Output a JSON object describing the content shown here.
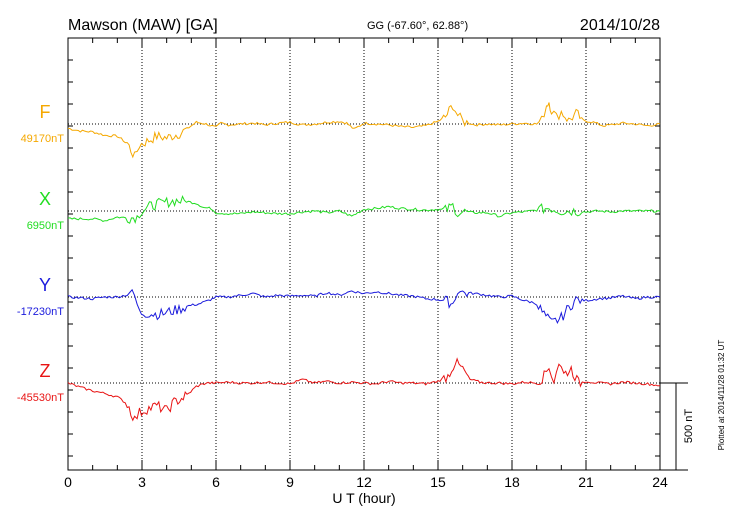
{
  "header": {
    "station": "Mawson (MAW)  [GA]",
    "coords": "GG (-67.60°,  62.88°)",
    "date": "2014/10/28"
  },
  "footnote": "Plotted at 2014/11/28 01:32 UT",
  "scale_label": "500 nT",
  "chart_data": {
    "type": "line",
    "title": "Mawson (MAW)  [GA]",
    "xlabel": "U T (hour)",
    "ylabel": "",
    "xlim": [
      0,
      24
    ],
    "x_ticks": [
      0,
      3,
      6,
      9,
      12,
      15,
      18,
      21,
      24
    ],
    "tick_labels": [
      "0",
      "3",
      "6",
      "9",
      "12",
      "15",
      "18",
      "21",
      "24"
    ],
    "grid": "dotted vertical every 3 h, dotted baseline per component",
    "scale_bar_nT": 500,
    "series": [
      {
        "name": "F",
        "baseline_label": "49170nT",
        "baseline_nT": 49170,
        "color": "#f5a800",
        "x": [
          0,
          0.5,
          1.0,
          1.5,
          2.0,
          2.4,
          2.7,
          2.9,
          3.2,
          3.6,
          4.0,
          4.3,
          4.6,
          4.9,
          5.2,
          5.6,
          6.0,
          6.2,
          6.5,
          7.0,
          7.5,
          8.0,
          8.5,
          9.0,
          9.5,
          10.0,
          10.5,
          11.0,
          11.3,
          11.6,
          12.0,
          12.5,
          13.0,
          13.5,
          14.0,
          14.5,
          15.0,
          15.3,
          15.6,
          15.8,
          16.0,
          16.5,
          17.0,
          17.5,
          18.0,
          18.5,
          19.0,
          19.2,
          19.4,
          19.5,
          19.6,
          19.8,
          20.0,
          20.3,
          20.6,
          20.9,
          21.3,
          21.7,
          22.0,
          22.5,
          23.0,
          23.5,
          24.0
        ],
        "values": [
          -25,
          -40,
          -45,
          -65,
          -70,
          -110,
          -190,
          -120,
          -100,
          -70,
          -80,
          -65,
          -50,
          -20,
          10,
          0,
          -20,
          5,
          -5,
          0,
          5,
          -5,
          5,
          10,
          -5,
          0,
          10,
          15,
          5,
          -30,
          5,
          0,
          -5,
          -15,
          -20,
          -10,
          15,
          40,
          110,
          50,
          15,
          -5,
          0,
          -5,
          0,
          5,
          0,
          20,
          110,
          130,
          80,
          40,
          70,
          20,
          60,
          20,
          10,
          -10,
          -5,
          5,
          0,
          -10,
          0
        ]
      },
      {
        "name": "X",
        "baseline_label": "6950nT",
        "baseline_nT": 6950,
        "color": "#22dd22",
        "x": [
          0,
          0.5,
          1.0,
          1.5,
          2.0,
          2.5,
          2.8,
          3.0,
          3.3,
          3.6,
          4.0,
          4.4,
          4.8,
          5.2,
          5.5,
          5.8,
          6.0,
          6.5,
          7.0,
          7.5,
          8.0,
          8.5,
          9.0,
          9.5,
          10.0,
          10.5,
          11.0,
          11.5,
          12.0,
          12.5,
          13.0,
          13.5,
          14.0,
          14.5,
          15.0,
          15.3,
          15.6,
          15.8,
          16.0,
          16.5,
          17.0,
          17.5,
          18.0,
          18.5,
          19.0,
          19.2,
          19.5,
          19.7,
          20.0,
          20.5,
          21.0,
          21.5,
          22.0,
          22.5,
          23.0,
          23.5,
          24.0
        ],
        "values": [
          -45,
          -45,
          -45,
          -55,
          -35,
          -40,
          -35,
          5,
          25,
          40,
          50,
          60,
          55,
          45,
          20,
          15,
          -10,
          -15,
          -15,
          -5,
          -10,
          -15,
          -15,
          -5,
          0,
          -10,
          0,
          -30,
          10,
          15,
          25,
          15,
          10,
          5,
          10,
          5,
          30,
          -10,
          -5,
          -10,
          -10,
          -30,
          -10,
          -5,
          5,
          10,
          20,
          10,
          0,
          0,
          -5,
          0,
          -5,
          0,
          0,
          0,
          0
        ]
      },
      {
        "name": "Y",
        "baseline_label": "-17230nT",
        "baseline_nT": -17230,
        "color": "#1a1adc",
        "x": [
          0,
          0.5,
          1.0,
          1.5,
          2.0,
          2.3,
          2.5,
          2.7,
          2.9,
          3.3,
          3.7,
          4.1,
          4.5,
          4.9,
          5.3,
          5.7,
          6.0,
          6.5,
          7.0,
          7.5,
          8.0,
          8.5,
          9.0,
          9.5,
          10.0,
          10.5,
          11.0,
          11.5,
          12.0,
          12.5,
          13.0,
          13.5,
          14.0,
          14.5,
          15.0,
          15.3,
          15.6,
          15.8,
          16.0,
          16.5,
          17.0,
          17.5,
          18.0,
          18.5,
          18.8,
          19.0,
          19.3,
          19.6,
          20.0,
          20.3,
          20.6,
          21.0,
          21.5,
          22.0,
          22.5,
          23.0,
          23.5,
          24.0
        ],
        "values": [
          0,
          -5,
          -10,
          0,
          0,
          10,
          30,
          5,
          -90,
          -95,
          -100,
          -85,
          -70,
          -50,
          -40,
          -20,
          0,
          0,
          10,
          20,
          0,
          10,
          5,
          10,
          5,
          25,
          10,
          35,
          20,
          30,
          20,
          10,
          5,
          -10,
          -15,
          -20,
          -40,
          40,
          25,
          20,
          10,
          0,
          5,
          -20,
          -30,
          -40,
          -100,
          -150,
          -120,
          -60,
          -15,
          -20,
          -10,
          -5,
          5,
          -10,
          0,
          0
        ]
      },
      {
        "name": "Z",
        "baseline_label": "-45530nT",
        "baseline_nT": -45530,
        "color": "#e81414",
        "x": [
          0,
          0.5,
          1.0,
          1.5,
          2.0,
          2.4,
          2.7,
          2.9,
          3.2,
          3.6,
          4.0,
          4.3,
          4.6,
          4.9,
          5.2,
          5.6,
          6.0,
          6.5,
          7.0,
          7.5,
          8.0,
          8.5,
          9.0,
          9.5,
          10.0,
          10.5,
          11.0,
          11.5,
          12.0,
          12.5,
          13.0,
          13.5,
          14.0,
          14.5,
          15.0,
          15.4,
          15.7,
          16.0,
          16.3,
          16.7,
          17.0,
          17.5,
          18.0,
          18.5,
          19.0,
          19.3,
          19.5,
          19.7,
          19.9,
          20.1,
          20.4,
          20.7,
          21.0,
          21.5,
          22.0,
          22.5,
          23.0,
          23.5,
          24.0
        ],
        "values": [
          0,
          -25,
          -45,
          -60,
          -80,
          -120,
          -210,
          -170,
          -150,
          -130,
          -160,
          -110,
          -90,
          -60,
          -20,
          0,
          0,
          5,
          0,
          0,
          5,
          0,
          -5,
          20,
          0,
          10,
          0,
          5,
          0,
          -5,
          10,
          0,
          0,
          -5,
          10,
          40,
          120,
          80,
          20,
          5,
          0,
          0,
          -5,
          5,
          0,
          40,
          90,
          15,
          120,
          50,
          80,
          0,
          10,
          0,
          -5,
          5,
          0,
          -5,
          -15
        ]
      }
    ]
  }
}
